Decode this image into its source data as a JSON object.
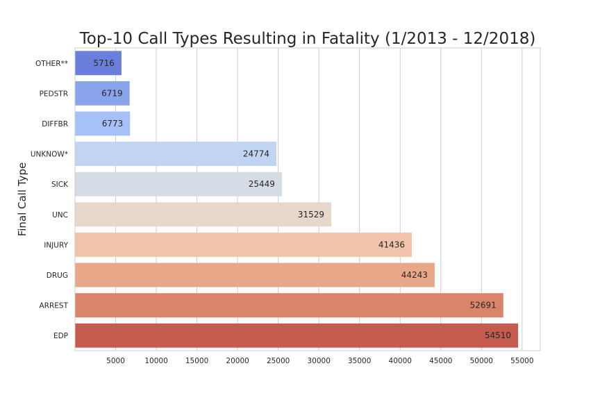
{
  "chart_data": {
    "type": "bar",
    "orientation": "horizontal",
    "title": "Top-10 Call Types Resulting in Fatality (1/2013 - 12/2018)",
    "xlabel": "",
    "ylabel": "Final Call Type",
    "categories": [
      "OTHER**",
      "PEDSTR",
      "DIFFBR",
      "UNKNOW*",
      "SICK",
      "UNC",
      "INJURY",
      "DRUG",
      "ARREST",
      "EDP"
    ],
    "values": [
      5716,
      6719,
      6773,
      24774,
      25449,
      31529,
      41436,
      44243,
      52691,
      54510
    ],
    "data_labels": [
      "5716",
      "6719",
      "6773",
      "24774",
      "25449",
      "31529",
      "41436",
      "44243",
      "52691",
      "54510"
    ],
    "xticks": [
      5000,
      10000,
      15000,
      20000,
      25000,
      30000,
      35000,
      40000,
      45000,
      50000,
      55000
    ],
    "xtick_labels": [
      "5000",
      "10000",
      "15000",
      "20000",
      "25000",
      "30000",
      "35000",
      "40000",
      "45000",
      "50000",
      "55000"
    ],
    "xlim": [
      0,
      57236
    ],
    "grid": "vertical",
    "legend": "none",
    "colors": [
      "#6a7fdb",
      "#89a3ec",
      "#a6c1f8",
      "#c1d4f4",
      "#d6dce5",
      "#e6d8cd",
      "#f0c3aa",
      "#e9a78a",
      "#db846c",
      "#c55b4f"
    ]
  }
}
